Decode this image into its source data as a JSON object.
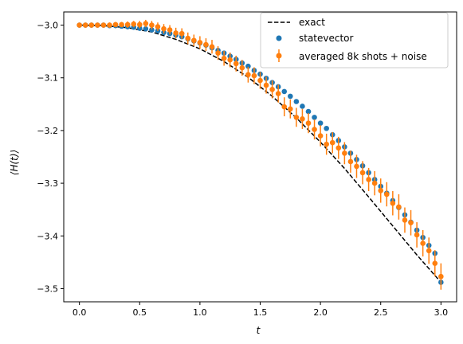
{
  "chart_data": {
    "type": "scatter",
    "xlabel": "t",
    "ylabel": "⟨H(t)⟩",
    "xlim": [
      -0.13,
      3.13
    ],
    "ylim": [
      -3.525,
      -2.975
    ],
    "xticks": [
      0.0,
      0.5,
      1.0,
      1.5,
      2.0,
      2.5,
      3.0
    ],
    "xtick_labels": [
      "0.0",
      "0.5",
      "1.0",
      "1.5",
      "2.0",
      "2.5",
      "3.0"
    ],
    "yticks": [
      -3.0,
      -3.1,
      -3.2,
      -3.3,
      -3.4,
      -3.5
    ],
    "ytick_labels": [
      "−3.0",
      "−3.1",
      "−3.2",
      "−3.3",
      "−3.4",
      "−3.5"
    ],
    "grid": false,
    "legend_placement": "top-right",
    "legend": [
      "exact",
      "statevector",
      "averaged 8k shots + noise"
    ],
    "colors": {
      "exact": "#000000",
      "statevector": "#1f77b4",
      "averaged": "#ff7f0e"
    },
    "exact": {
      "name": "exact",
      "style": "dashed",
      "x": [
        0.0,
        0.2,
        0.4,
        0.6,
        0.8,
        1.0,
        1.2,
        1.4,
        1.6,
        1.8,
        2.0,
        2.2,
        2.4,
        2.6,
        2.8,
        3.0
      ],
      "y": [
        -3.0,
        -3.001,
        -3.005,
        -3.013,
        -3.027,
        -3.045,
        -3.069,
        -3.099,
        -3.135,
        -3.176,
        -3.222,
        -3.272,
        -3.326,
        -3.381,
        -3.436,
        -3.488
      ]
    },
    "statevector": {
      "name": "statevector",
      "x": [
        0.0,
        0.05,
        0.1,
        0.15,
        0.2,
        0.25,
        0.3,
        0.35,
        0.4,
        0.45,
        0.5,
        0.55,
        0.6,
        0.65,
        0.7,
        0.75,
        0.8,
        0.85,
        0.9,
        0.95,
        1.0,
        1.05,
        1.1,
        1.15,
        1.2,
        1.25,
        1.3,
        1.35,
        1.4,
        1.45,
        1.5,
        1.55,
        1.6,
        1.65,
        1.7,
        1.75,
        1.8,
        1.85,
        1.9,
        1.95,
        2.0,
        2.05,
        2.1,
        2.15,
        2.2,
        2.25,
        2.3,
        2.35,
        2.4,
        2.45,
        2.5,
        2.55,
        2.6,
        2.65,
        2.7,
        2.75,
        2.8,
        2.85,
        2.9,
        2.95,
        3.0
      ],
      "y": [
        -3.0,
        -3.0,
        -3.0,
        -3.0,
        -3.0,
        -3.001,
        -3.001,
        -3.002,
        -3.003,
        -3.004,
        -3.006,
        -3.007,
        -3.009,
        -3.011,
        -3.014,
        -3.016,
        -3.019,
        -3.022,
        -3.026,
        -3.03,
        -3.034,
        -3.038,
        -3.043,
        -3.048,
        -3.053,
        -3.059,
        -3.065,
        -3.072,
        -3.078,
        -3.086,
        -3.093,
        -3.101,
        -3.109,
        -3.117,
        -3.126,
        -3.135,
        -3.145,
        -3.154,
        -3.164,
        -3.175,
        -3.186,
        -3.196,
        -3.208,
        -3.219,
        -3.231,
        -3.243,
        -3.255,
        -3.267,
        -3.28,
        -3.293,
        -3.306,
        -3.319,
        -3.333,
        -3.346,
        -3.36,
        -3.374,
        -3.389,
        -3.403,
        -3.418,
        -3.433,
        -3.488
      ]
    },
    "averaged": {
      "name": "averaged 8k shots + noise",
      "x": [
        0.0,
        0.05,
        0.1,
        0.15,
        0.2,
        0.25,
        0.3,
        0.35,
        0.4,
        0.45,
        0.5,
        0.55,
        0.6,
        0.65,
        0.7,
        0.75,
        0.8,
        0.85,
        0.9,
        0.95,
        1.0,
        1.05,
        1.1,
        1.15,
        1.2,
        1.25,
        1.3,
        1.35,
        1.4,
        1.45,
        1.5,
        1.55,
        1.6,
        1.65,
        1.7,
        1.75,
        1.8,
        1.85,
        1.9,
        1.95,
        2.0,
        2.05,
        2.1,
        2.15,
        2.2,
        2.25,
        2.3,
        2.35,
        2.4,
        2.45,
        2.5,
        2.55,
        2.6,
        2.65,
        2.7,
        2.75,
        2.8,
        2.85,
        2.9,
        2.95,
        3.0
      ],
      "y": [
        -3.0,
        -3.0,
        -3.0,
        -3.0,
        -3.0,
        -3.0,
        -2.999,
        -2.999,
        -2.999,
        -2.998,
        -2.999,
        -2.997,
        -3.0,
        -3.003,
        -3.007,
        -3.009,
        -3.015,
        -3.016,
        -3.025,
        -3.029,
        -3.033,
        -3.037,
        -3.041,
        -3.053,
        -3.063,
        -3.066,
        -3.073,
        -3.081,
        -3.094,
        -3.096,
        -3.105,
        -3.114,
        -3.122,
        -3.13,
        -3.155,
        -3.159,
        -3.175,
        -3.178,
        -3.186,
        -3.198,
        -3.21,
        -3.226,
        -3.223,
        -3.233,
        -3.243,
        -3.259,
        -3.268,
        -3.28,
        -3.293,
        -3.3,
        -3.314,
        -3.321,
        -3.338,
        -3.345,
        -3.37,
        -3.375,
        -3.398,
        -3.414,
        -3.428,
        -3.452,
        -3.477
      ],
      "err": [
        0.004,
        0.004,
        0.004,
        0.004,
        0.004,
        0.005,
        0.005,
        0.005,
        0.006,
        0.006,
        0.007,
        0.007,
        0.008,
        0.008,
        0.009,
        0.009,
        0.01,
        0.01,
        0.011,
        0.011,
        0.012,
        0.012,
        0.013,
        0.013,
        0.014,
        0.014,
        0.015,
        0.015,
        0.015,
        0.016,
        0.016,
        0.016,
        0.017,
        0.017,
        0.018,
        0.018,
        0.018,
        0.019,
        0.019,
        0.019,
        0.02,
        0.02,
        0.02,
        0.021,
        0.021,
        0.021,
        0.022,
        0.022,
        0.022,
        0.023,
        0.023,
        0.023,
        0.023,
        0.024,
        0.024,
        0.024,
        0.024,
        0.025,
        0.025,
        0.025,
        0.025
      ]
    }
  }
}
